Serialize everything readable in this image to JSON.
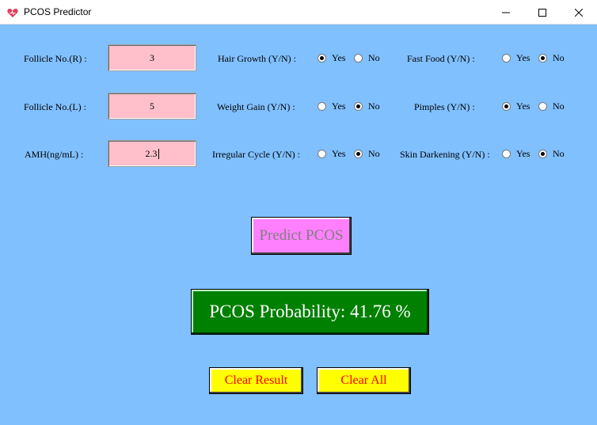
{
  "window": {
    "title": "PCOS Predictor",
    "icon": "heart-icon",
    "controls": [
      "minimize-icon",
      "maximize-icon",
      "close-icon"
    ]
  },
  "inputs": {
    "follicle_r": {
      "label": "Follicle No.(R) :",
      "value": "3"
    },
    "follicle_l": {
      "label": "Follicle No.(L) :",
      "value": "5"
    },
    "amh": {
      "label": "AMH(ng/mL) :",
      "value": "2.3"
    }
  },
  "questions": {
    "hair_growth": {
      "label": "Hair Growth (Y/N) :",
      "yes": "Yes",
      "no": "No",
      "selected": "Yes"
    },
    "weight_gain": {
      "label": "Weight Gain (Y/N) :",
      "yes": "Yes",
      "no": "No",
      "selected": "No"
    },
    "irregular_cycle": {
      "label": "Irregular Cycle (Y/N) :",
      "yes": "Yes",
      "no": "No",
      "selected": "No"
    },
    "fast_food": {
      "label": "Fast Food (Y/N) :",
      "yes": "Yes",
      "no": "No",
      "selected": "No"
    },
    "pimples": {
      "label": "Pimples (Y/N) :",
      "yes": "Yes",
      "no": "No",
      "selected": "Yes"
    },
    "skin_darkening": {
      "label": "Skin Darkening (Y/N) :",
      "yes": "Yes",
      "no": "No",
      "selected": "No"
    }
  },
  "buttons": {
    "predict": "Predict PCOS",
    "clear_result": "Clear Result",
    "clear_all": "Clear All"
  },
  "result": {
    "text": "PCOS Probability: 41.76 %"
  },
  "colors": {
    "background": "#80c0ff",
    "entry_bg": "#ffc0cb",
    "predict_bg": "#ff80ff",
    "result_bg": "#008000",
    "clear_bg": "#ffff00",
    "clear_fg": "#ff0000"
  }
}
